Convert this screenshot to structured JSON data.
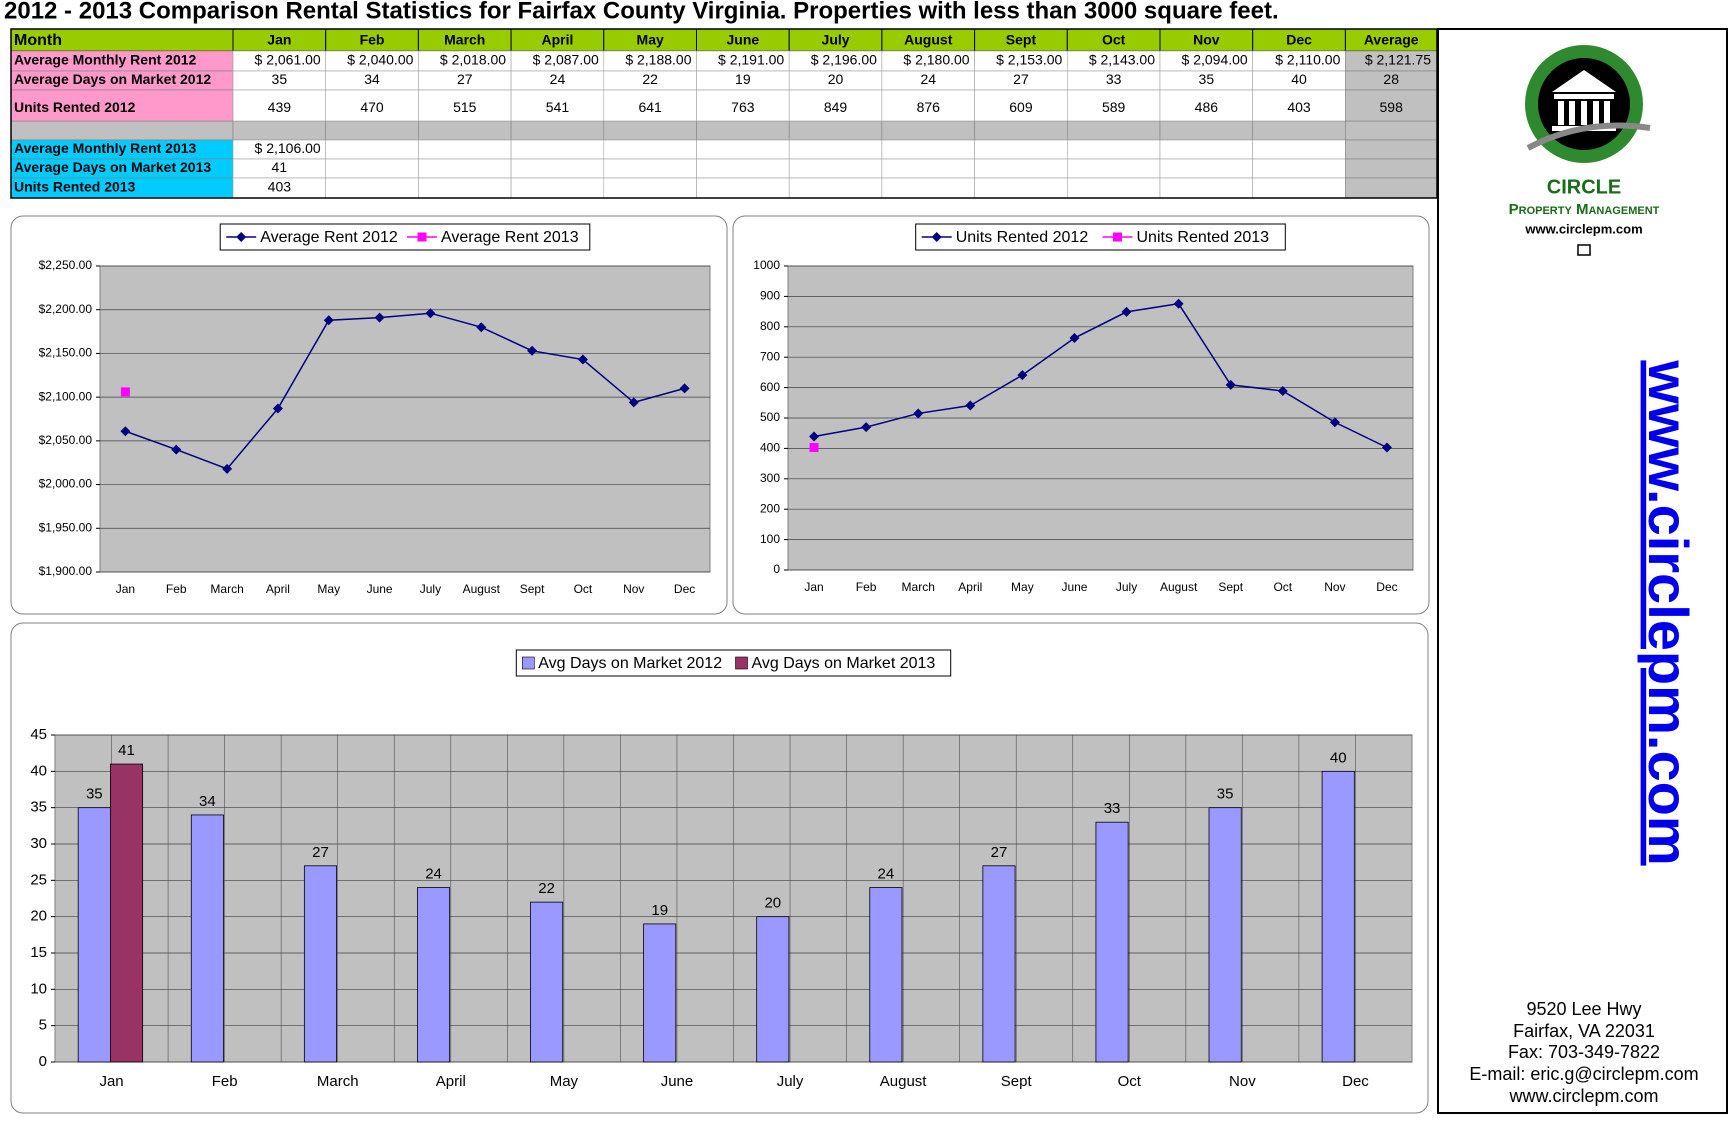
{
  "title": "2012 - 2013 Comparison Rental Statistics for Fairfax County Virginia. Properties with less than 3000 square feet.",
  "table": {
    "header": [
      "Month",
      "Jan",
      "Feb",
      "March",
      "April",
      "May",
      "June",
      "July",
      "August",
      "Sept",
      "Oct",
      "Nov",
      "Dec",
      "Average"
    ],
    "rows": [
      {
        "label": "Average Monthly Rent 2012",
        "cells": [
          "$ 2,061.00",
          "$ 2,040.00",
          "$ 2,018.00",
          "$ 2,087.00",
          "$ 2,188.00",
          "$ 2,191.00",
          "$ 2,196.00",
          "$ 2,180.00",
          "$ 2,153.00",
          "$ 2,143.00",
          "$ 2,094.00",
          "$ 2,110.00"
        ],
        "average": "$ 2,121.75"
      },
      {
        "label": "Average Days on Market 2012",
        "cells": [
          35,
          34,
          27,
          24,
          22,
          19,
          20,
          24,
          27,
          33,
          35,
          40
        ],
        "average": 28
      },
      {
        "label": "Units Rented 2012",
        "cells": [
          439,
          470,
          515,
          541,
          641,
          763,
          849,
          876,
          609,
          589,
          486,
          403
        ],
        "average": 598
      },
      {
        "label": "Average Monthly Rent 2013",
        "cells": [
          "$ 2,106.00"
        ]
      },
      {
        "label": "Average Days on Market 2013",
        "cells": [
          41
        ]
      },
      {
        "label": "Units Rented 2013",
        "cells": [
          403
        ]
      }
    ]
  },
  "chart_data": [
    {
      "type": "line",
      "categories": [
        "Jan",
        "Feb",
        "March",
        "April",
        "May",
        "June",
        "July",
        "August",
        "Sept",
        "Oct",
        "Nov",
        "Dec"
      ],
      "series": [
        {
          "name": "Average Rent 2012",
          "color": "#000080",
          "marker": "diamond",
          "values": [
            2061,
            2040,
            2018,
            2087,
            2188,
            2191,
            2196,
            2180,
            2153,
            2143,
            2094,
            2110
          ]
        },
        {
          "name": "Average Rent 2013",
          "color": "#ff00ff",
          "marker": "square",
          "values": [
            2106,
            null,
            null,
            null,
            null,
            null,
            null,
            null,
            null,
            null,
            null,
            null
          ]
        }
      ],
      "ylim": [
        1900,
        2250
      ],
      "yticks": [
        {
          "value": 1900,
          "label": "$1,900.00"
        },
        {
          "value": 1950,
          "label": "$1,950.00"
        },
        {
          "value": 2000,
          "label": "$2,000.00"
        },
        {
          "value": 2050,
          "label": "$2,050.00"
        },
        {
          "value": 2100,
          "label": "$2,100.00"
        },
        {
          "value": 2150,
          "label": "$2,150.00"
        },
        {
          "value": 2200,
          "label": "$2,200.00"
        },
        {
          "value": 2250,
          "label": "$2,250.00"
        }
      ],
      "grid": true,
      "legend": "top"
    },
    {
      "type": "line",
      "categories": [
        "Jan",
        "Feb",
        "March",
        "April",
        "May",
        "June",
        "July",
        "August",
        "Sept",
        "Oct",
        "Nov",
        "Dec"
      ],
      "series": [
        {
          "name": "Units Rented 2012",
          "color": "#000080",
          "marker": "diamond",
          "values": [
            439,
            470,
            515,
            541,
            641,
            763,
            849,
            876,
            609,
            589,
            486,
            403
          ]
        },
        {
          "name": "Units Rented 2013",
          "color": "#ff00ff",
          "marker": "square",
          "values": [
            403,
            null,
            null,
            null,
            null,
            null,
            null,
            null,
            null,
            null,
            null,
            null
          ]
        }
      ],
      "ylim": [
        0,
        1000
      ],
      "yticks": [
        0,
        100,
        200,
        300,
        400,
        500,
        600,
        700,
        800,
        900,
        1000
      ],
      "grid": true,
      "legend": "top"
    },
    {
      "type": "bar",
      "categories": [
        "Jan",
        "Feb",
        "March",
        "April",
        "May",
        "June",
        "July",
        "August",
        "Sept",
        "Oct",
        "Nov",
        "Dec"
      ],
      "series": [
        {
          "name": "Avg Days on Market 2012",
          "color": "#9999ff",
          "values": [
            35,
            34,
            27,
            24,
            22,
            19,
            20,
            24,
            27,
            33,
            35,
            40
          ]
        },
        {
          "name": "Avg Days on Market 2013",
          "color": "#993366",
          "values": [
            41,
            null,
            null,
            null,
            null,
            null,
            null,
            null,
            null,
            null,
            null,
            null
          ]
        }
      ],
      "ylim": [
        0,
        45
      ],
      "yticks": [
        0,
        5,
        10,
        15,
        20,
        25,
        30,
        35,
        40,
        45
      ],
      "grid": true,
      "legend": "top"
    }
  ],
  "sidebar": {
    "logo_name": "CIRCLE",
    "logo_subtitle": "Property Management",
    "logo_url": "www.circlepm.com",
    "banner": "www.circlepm.com",
    "address": [
      "9520 Lee Hwy",
      "Fairfax, VA 22031",
      "Fax: 703-349-7822",
      "E-mail: eric.g@circlepm.com",
      "www.circlepm.com"
    ]
  }
}
